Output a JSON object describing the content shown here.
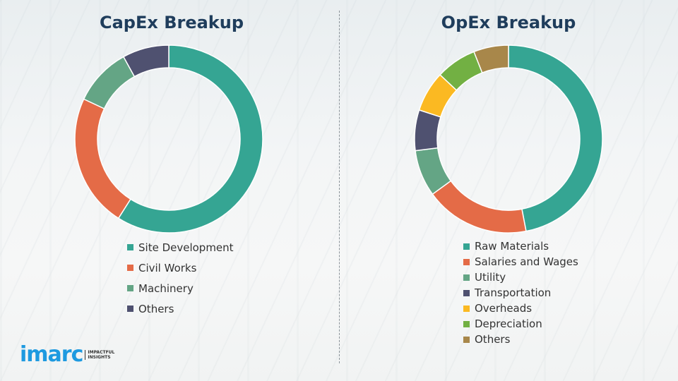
{
  "chart_data": [
    {
      "type": "pie",
      "title": "CapEx Breakup",
      "unit": "percent (estimated)",
      "categories": [
        "Site Development",
        "Civil Works",
        "Machinery",
        "Others"
      ],
      "values": [
        59,
        23,
        10,
        8
      ],
      "colors": [
        "#35a593",
        "#e46b47",
        "#64a585",
        "#4f5170"
      ],
      "legend": "bottom"
    },
    {
      "type": "pie",
      "title": "OpEx Breakup",
      "unit": "percent (estimated)",
      "categories": [
        "Raw Materials",
        "Salaries and Wages",
        "Utility",
        "Transportation",
        "Overheads",
        "Depreciation",
        "Others"
      ],
      "values": [
        47,
        18,
        8,
        7,
        7,
        7,
        6
      ],
      "colors": [
        "#35a593",
        "#e46b47",
        "#64a585",
        "#4f5170",
        "#fbb922",
        "#72b043",
        "#a8874a"
      ],
      "legend": "bottom"
    }
  ],
  "logo": {
    "word": "imarc",
    "tagline_1": "IMPACTFUL",
    "tagline_2": "INSIGHTS"
  }
}
